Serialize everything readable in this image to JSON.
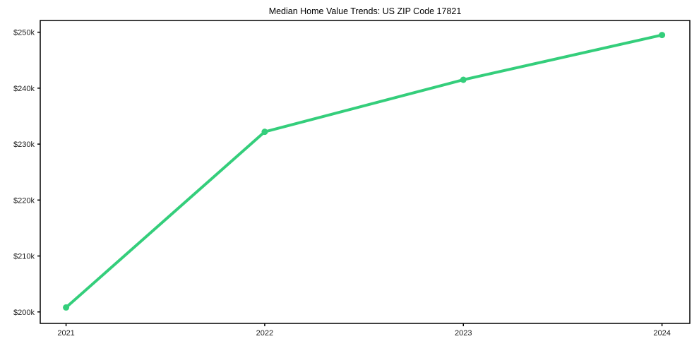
{
  "page": {
    "background": "#ffffff"
  },
  "chart_data": {
    "type": "line",
    "title": "Median Home Value Trends: US ZIP Code 17821",
    "xlabel": "",
    "ylabel": "",
    "x": [
      2021,
      2022,
      2023,
      2024
    ],
    "x_tick_labels": [
      "2021",
      "2022",
      "2023",
      "2024"
    ],
    "values": [
      200.8,
      232.2,
      241.5,
      249.5
    ],
    "values_unit": "thousand USD",
    "y_ticks": [
      200,
      210,
      220,
      230,
      240,
      250
    ],
    "y_tick_labels": [
      "$200k",
      "$210k",
      "$220k",
      "$230k",
      "$240k",
      "$250k"
    ],
    "xlim": [
      2020.87,
      2024.14
    ],
    "ylim": [
      197.95,
      252.1
    ],
    "grid": false,
    "legend_position": "none",
    "frame": true,
    "line_color": "#34ce7b",
    "axis_color": "#000000",
    "tick_label_color": "#1a1a1a",
    "title_color": "#000000",
    "line_width": 4,
    "marker_radius": 4.5
  }
}
